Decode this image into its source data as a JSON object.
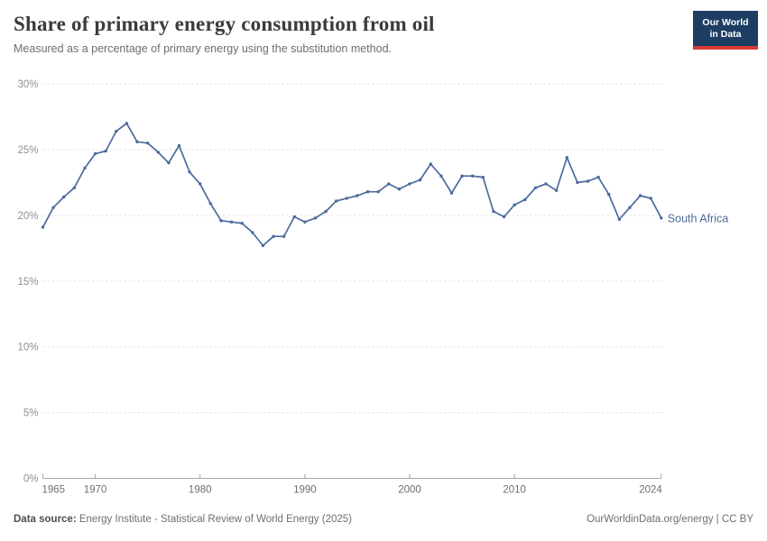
{
  "header": {
    "title": "Share of primary energy consumption from oil",
    "subtitle": "Measured as a percentage of primary energy using the substitution method."
  },
  "logo": {
    "line1": "Our World",
    "line2": "in Data",
    "bg_color": "#1d3d63",
    "accent_color": "#d93a34"
  },
  "chart_data": {
    "type": "line",
    "title": "Share of primary energy consumption from oil",
    "subtitle": "Measured as a percentage of primary energy using the substitution method.",
    "xlabel": "",
    "ylabel": "",
    "xlim": [
      1965,
      2024
    ],
    "ylim": [
      0,
      30
    ],
    "grid": "horizontal-dashed",
    "legend_position": "end-of-line-label",
    "entity_label": "South Africa",
    "x": [
      1965,
      1966,
      1967,
      1968,
      1969,
      1970,
      1971,
      1972,
      1973,
      1974,
      1975,
      1976,
      1977,
      1978,
      1979,
      1980,
      1981,
      1982,
      1983,
      1984,
      1985,
      1986,
      1987,
      1988,
      1989,
      1990,
      1991,
      1992,
      1993,
      1994,
      1995,
      1996,
      1997,
      1998,
      1999,
      2000,
      2001,
      2002,
      2003,
      2004,
      2005,
      2006,
      2007,
      2008,
      2009,
      2010,
      2011,
      2012,
      2013,
      2014,
      2015,
      2016,
      2017,
      2018,
      2019,
      2020,
      2021,
      2022,
      2023,
      2024
    ],
    "series": [
      {
        "name": "South Africa",
        "color": "#4c6a9c",
        "values": [
          19.1,
          20.6,
          21.4,
          22.1,
          23.6,
          24.7,
          24.9,
          26.4,
          27.0,
          25.6,
          25.5,
          24.8,
          24.0,
          25.3,
          23.3,
          22.4,
          20.9,
          19.6,
          19.5,
          19.4,
          18.7,
          17.7,
          18.4,
          18.4,
          19.9,
          19.5,
          19.8,
          20.3,
          21.1,
          21.3,
          21.5,
          21.8,
          21.8,
          22.4,
          22.0,
          22.4,
          22.7,
          23.9,
          23.0,
          21.7,
          23.0,
          23.0,
          22.9,
          20.3,
          19.9,
          20.8,
          21.2,
          22.1,
          22.4,
          21.9,
          24.4,
          22.5,
          22.6,
          22.9,
          21.6,
          19.7,
          20.6,
          21.5,
          21.3,
          19.8
        ]
      }
    ],
    "y_ticks": [
      {
        "value": 0,
        "label": "0%"
      },
      {
        "value": 5,
        "label": "5%"
      },
      {
        "value": 10,
        "label": "10%"
      },
      {
        "value": 15,
        "label": "15%"
      },
      {
        "value": 20,
        "label": "20%"
      },
      {
        "value": 25,
        "label": "25%"
      },
      {
        "value": 30,
        "label": "30%"
      }
    ],
    "x_ticks": [
      {
        "value": 1965,
        "label": "1965"
      },
      {
        "value": 1970,
        "label": "1970"
      },
      {
        "value": 1980,
        "label": "1980"
      },
      {
        "value": 1990,
        "label": "1990"
      },
      {
        "value": 2000,
        "label": "2000"
      },
      {
        "value": 2010,
        "label": "2010"
      },
      {
        "value": 2024,
        "label": "2024"
      }
    ]
  },
  "colors": {
    "line": "#4c6a9c",
    "gridline": "#dedede",
    "axis": "#a6a6a6",
    "y_tick_label": "#909090",
    "x_tick_label": "#6f6f6f",
    "title": "#3b3b3b",
    "subtitle": "#6e6e6e"
  },
  "footer": {
    "source_label": "Data source:",
    "source_text": " Energy Institute - Statistical Review of World Energy (2025)",
    "credit": "OurWorldinData.org/energy | CC BY"
  }
}
